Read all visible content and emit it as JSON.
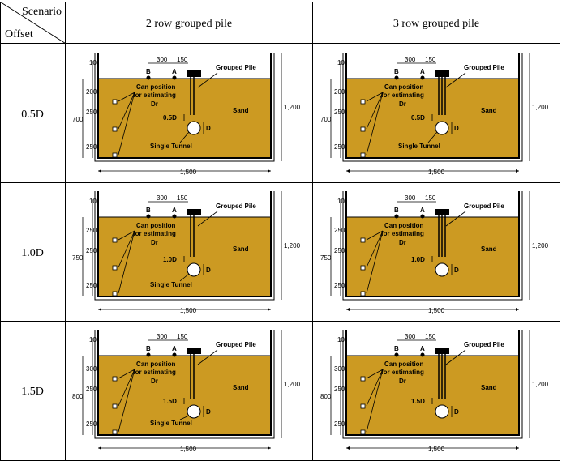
{
  "header": {
    "scenario": "Scenario",
    "offset": "Offset",
    "col1": "2 row grouped pile",
    "col2": "3 row grouped pile"
  },
  "rows": [
    {
      "label": "0.5D",
      "depth_label": "0.5D",
      "dims": [
        "10",
        "200",
        "250",
        "250"
      ],
      "total": "700"
    },
    {
      "label": "1.0D",
      "depth_label": "1.0D",
      "dims": [
        "10",
        "250",
        "250",
        "250"
      ],
      "total": "750"
    },
    {
      "label": "1.5D",
      "depth_label": "1.5D",
      "dims": [
        "10",
        "300",
        "250",
        "250"
      ],
      "total": "800"
    }
  ],
  "diagram": {
    "spacing_ba": "300",
    "spacing_a_pile": "150",
    "point_b": "B",
    "point_a": "A",
    "grouped_pile": "Grouped Pile",
    "can_line1": "Can position",
    "can_line2": "for estimating",
    "dr": "Dr",
    "sand": "Sand",
    "sand_alt": "Sand",
    "tunnel": "Single Tunnel",
    "diameter": "D",
    "height": "1,200",
    "width": "1,500"
  },
  "colors": {
    "sand": "#cc9a22",
    "border": "#000000"
  }
}
